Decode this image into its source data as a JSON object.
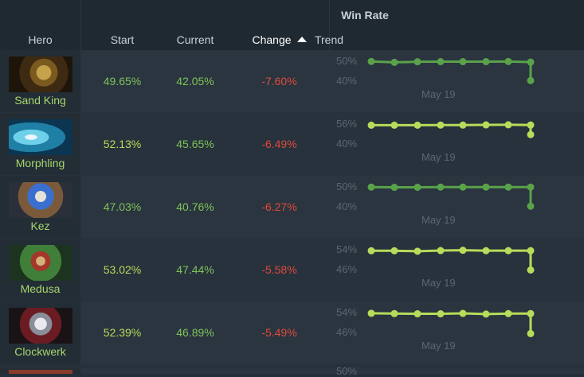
{
  "header": {
    "group_label": "Win Rate",
    "columns": {
      "hero": "Hero",
      "start": "Start",
      "current": "Current",
      "change": "Change",
      "trend": "Trend"
    }
  },
  "colors": {
    "positive_dark": "#7fc35a",
    "positive_light": "#b5dc5a",
    "negative": "#e04a3c",
    "trend_dark": "#5aa24a",
    "trend_light": "#b7dc5b"
  },
  "rows": [
    {
      "hero": "Sand King",
      "icon": "sand-king-portrait",
      "start": "49.65%",
      "current": "42.05%",
      "change": "-7.60%",
      "y_top": "50%",
      "y_bottom": "40%",
      "x_label": "May 19",
      "trend": [
        0.1,
        0.2,
        0.14,
        0.13,
        0.13,
        0.13,
        0.11,
        0.17,
        0.91
      ],
      "trend_style": "dark"
    },
    {
      "hero": "Morphling",
      "icon": "morphling-portrait",
      "start": "52.13%",
      "current": "45.65%",
      "change": "-6.49%",
      "y_top": "56%",
      "y_bottom": "40%",
      "x_label": "May 19",
      "trend": [
        0.2,
        0.2,
        0.2,
        0.19,
        0.19,
        0.17,
        0.16,
        0.18,
        0.54
      ],
      "trend_style": "light"
    },
    {
      "hero": "Kez",
      "icon": "kez-portrait",
      "start": "47.03%",
      "current": "40.76%",
      "change": "-6.27%",
      "y_top": "50%",
      "y_bottom": "40%",
      "x_label": "May 19",
      "trend": [
        0.1,
        0.13,
        0.12,
        0.1,
        0.1,
        0.1,
        0.1,
        0.1,
        0.91
      ],
      "trend_style": "dark"
    },
    {
      "hero": "Medusa",
      "icon": "medusa-portrait",
      "start": "53.02%",
      "current": "47.44%",
      "change": "-5.58%",
      "y_top": "54%",
      "y_bottom": "46%",
      "x_label": "May 19",
      "trend": [
        0.19,
        0.19,
        0.24,
        0.17,
        0.14,
        0.18,
        0.18,
        0.18,
        0.95
      ],
      "trend_style": "light"
    },
    {
      "hero": "Clockwerk",
      "icon": "clockwerk-portrait",
      "start": "52.39%",
      "current": "46.89%",
      "change": "-5.49%",
      "y_top": "54%",
      "y_bottom": "46%",
      "x_label": "May 19",
      "trend": [
        0.16,
        0.19,
        0.21,
        0.21,
        0.17,
        0.24,
        0.19,
        0.19,
        0.98
      ],
      "trend_style": "light"
    }
  ],
  "peek_row": {
    "y_top": "50%"
  }
}
